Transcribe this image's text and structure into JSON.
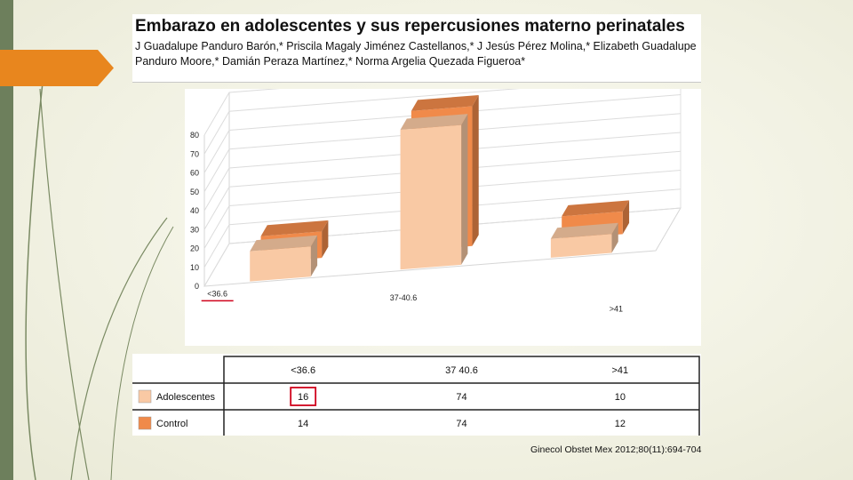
{
  "header": {
    "title": "Embarazo en adolescentes y sus repercusiones materno perinatales",
    "authors": "J Guadalupe Panduro Barón,* Priscila Magaly Jiménez Castellanos,* J Jesús Pérez Molina,* Elizabeth Guadalupe Panduro Moore,* Damián Peraza Martínez,* Norma Argelia Quezada Figueroa*"
  },
  "chart_data": {
    "type": "bar",
    "style": "3d",
    "categories": [
      "<36.6",
      "37-40.6",
      ">41"
    ],
    "series": [
      {
        "name": "Adolescentes",
        "values": [
          16,
          74,
          10
        ],
        "color": "#f9c9a4"
      },
      {
        "name": "Control",
        "values": [
          14,
          74,
          12
        ],
        "color": "#f08a4a"
      }
    ],
    "ylim": [
      0,
      80
    ],
    "yticks": [
      0,
      10,
      20,
      30,
      40,
      50,
      60,
      70,
      80
    ],
    "grid": true,
    "highlight_category": "<36.6",
    "highlight_color": "#d0021b"
  },
  "table": {
    "headers": [
      "<36.6",
      "37 40.6",
      ">41"
    ],
    "rows": [
      {
        "label": "Adolescentes",
        "values": [
          "16",
          "74",
          "10"
        ]
      },
      {
        "label": "Control",
        "values": [
          "14",
          "74",
          "12"
        ]
      }
    ],
    "highlight_cell": {
      "row": 0,
      "col": 0
    }
  },
  "citation": "Ginecol Obstet Mex 2012;80(11):694-704"
}
